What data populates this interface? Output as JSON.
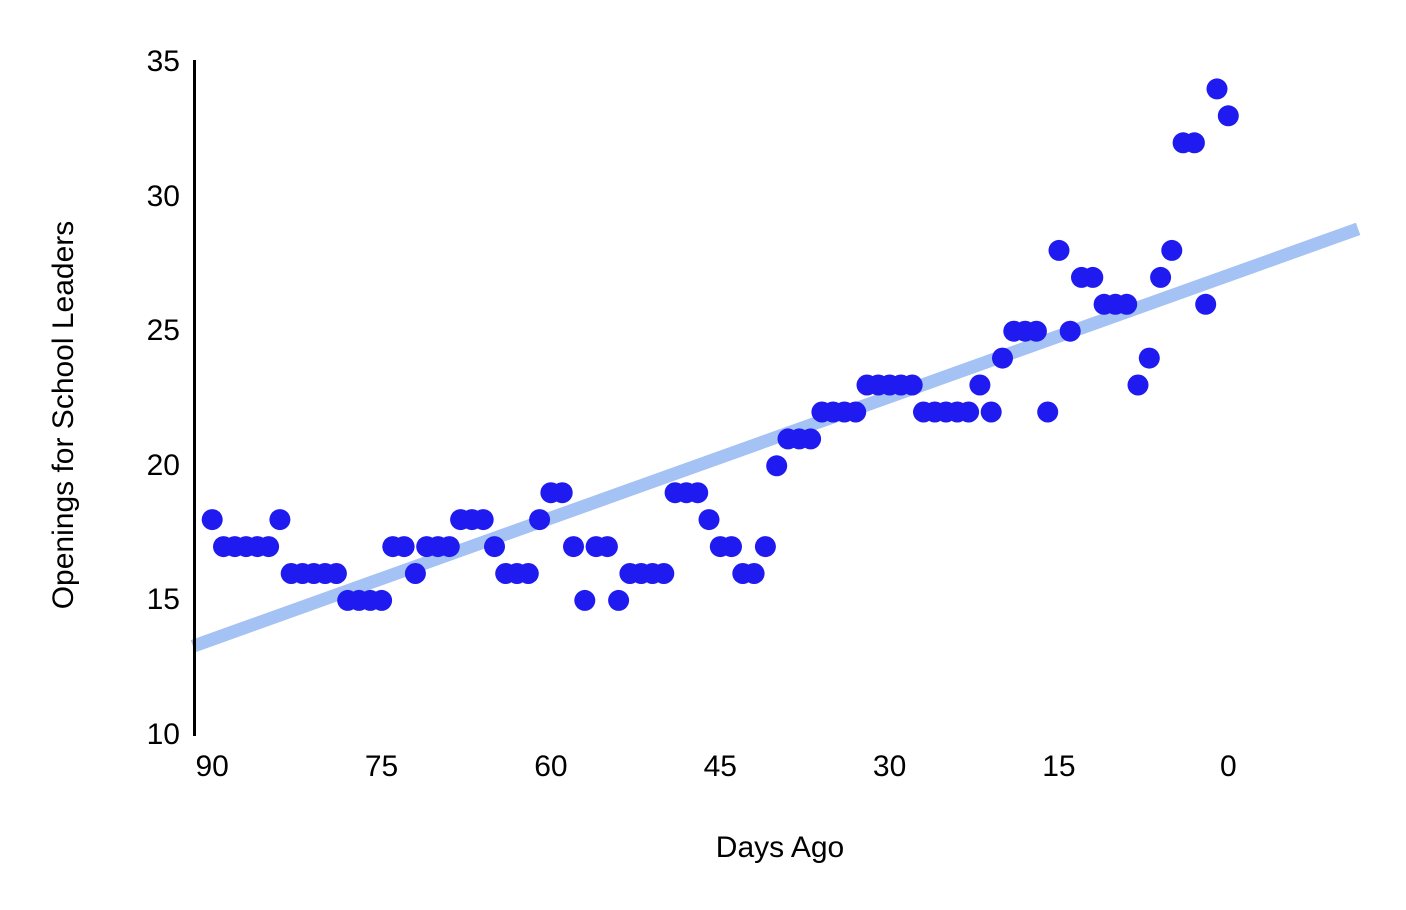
{
  "chart_data": {
    "type": "scatter",
    "title": "",
    "xlabel": "Days Ago",
    "ylabel": "Openings for School Leaders",
    "x_ticks": [
      90,
      75,
      60,
      45,
      30,
      15,
      0
    ],
    "y_ticks": [
      10,
      15,
      20,
      25,
      30,
      35
    ],
    "x_axis_reversed": true,
    "xlim": [
      91.7,
      -15.7
    ],
    "ylim": [
      10,
      35
    ],
    "grid": false,
    "legend": "none",
    "point_format": [
      "day",
      "value"
    ],
    "series": [
      {
        "name": "openings-by-day",
        "type": "scatter",
        "color": "#1f1af0",
        "points": [
          [
            90,
            18
          ],
          [
            89,
            17
          ],
          [
            88,
            17
          ],
          [
            87,
            17
          ],
          [
            86,
            17
          ],
          [
            85,
            17
          ],
          [
            84,
            18
          ],
          [
            83,
            16
          ],
          [
            82,
            16
          ],
          [
            81,
            16
          ],
          [
            80,
            16
          ],
          [
            79,
            16
          ],
          [
            78,
            15
          ],
          [
            77,
            15
          ],
          [
            76,
            15
          ],
          [
            75,
            15
          ],
          [
            74,
            17
          ],
          [
            73,
            17
          ],
          [
            72,
            16
          ],
          [
            71,
            17
          ],
          [
            70,
            17
          ],
          [
            69,
            17
          ],
          [
            68,
            18
          ],
          [
            67,
            18
          ],
          [
            66,
            18
          ],
          [
            65,
            17
          ],
          [
            64,
            16
          ],
          [
            63,
            16
          ],
          [
            62,
            16
          ],
          [
            61,
            18
          ],
          [
            60,
            19
          ],
          [
            59,
            19
          ],
          [
            58,
            17
          ],
          [
            57,
            15
          ],
          [
            56,
            17
          ],
          [
            55,
            17
          ],
          [
            54,
            15
          ],
          [
            53,
            16
          ],
          [
            52,
            16
          ],
          [
            51,
            16
          ],
          [
            50,
            16
          ],
          [
            49,
            19
          ],
          [
            48,
            19
          ],
          [
            47,
            19
          ],
          [
            46,
            18
          ],
          [
            45,
            17
          ],
          [
            44,
            17
          ],
          [
            43,
            16
          ],
          [
            42,
            16
          ],
          [
            41,
            17
          ],
          [
            40,
            20
          ],
          [
            39,
            21
          ],
          [
            38,
            21
          ],
          [
            37,
            21
          ],
          [
            36,
            22
          ],
          [
            35,
            22
          ],
          [
            34,
            22
          ],
          [
            33,
            22
          ],
          [
            32,
            23
          ],
          [
            31,
            23
          ],
          [
            30,
            23
          ],
          [
            29,
            23
          ],
          [
            28,
            23
          ],
          [
            27,
            22
          ],
          [
            26,
            22
          ],
          [
            25,
            22
          ],
          [
            24,
            22
          ],
          [
            23,
            22
          ],
          [
            22,
            23
          ],
          [
            21,
            22
          ],
          [
            20,
            24
          ],
          [
            19,
            25
          ],
          [
            18,
            25
          ],
          [
            17,
            25
          ],
          [
            16,
            22
          ],
          [
            15,
            28
          ],
          [
            14,
            25
          ],
          [
            13,
            27
          ],
          [
            12,
            27
          ],
          [
            11,
            26
          ],
          [
            10,
            26
          ],
          [
            9,
            26
          ],
          [
            8,
            23
          ],
          [
            7,
            24
          ],
          [
            6,
            27
          ],
          [
            5,
            28
          ],
          [
            4,
            32
          ],
          [
            3,
            32
          ],
          [
            2,
            26
          ],
          [
            1,
            34
          ],
          [
            0,
            33
          ]
        ]
      },
      {
        "name": "trend-line",
        "type": "line",
        "color": "#a4c2f4",
        "from": {
          "day": 91.7,
          "value": 13.3
        },
        "to": {
          "day": -11.5,
          "value": 28.8
        }
      }
    ]
  },
  "colors": {
    "point": "#1f1af0",
    "trend": "#a4c2f4",
    "axis": "#000000",
    "background": "#ffffff"
  }
}
